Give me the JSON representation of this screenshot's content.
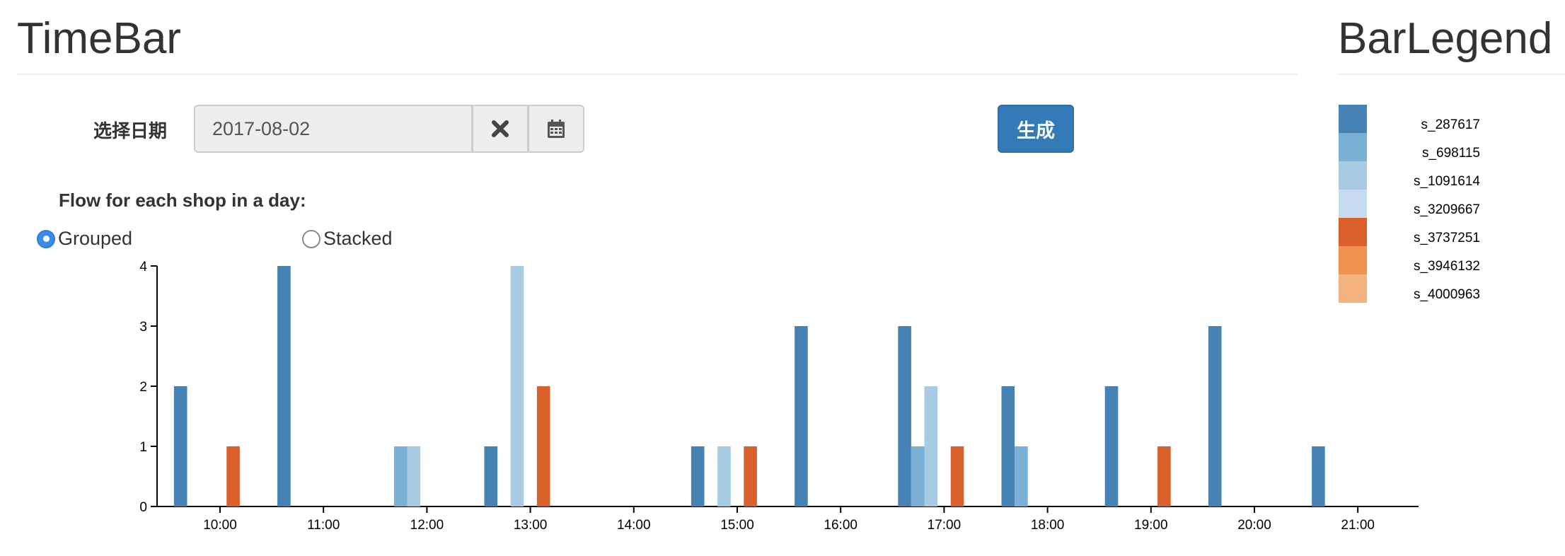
{
  "timebar": {
    "heading": "TimeBar",
    "date_label": "选择日期",
    "date_value": "2017-08-02",
    "clear_icon": "times-icon",
    "calendar_icon": "calendar-icon",
    "generate_label": "生成",
    "flow_title": "Flow for each shop in a day:",
    "radio_grouped": "Grouped",
    "radio_stacked": "Stacked",
    "selected_mode": "grouped"
  },
  "legend": {
    "heading": "BarLegend"
  },
  "chart_data": {
    "type": "bar",
    "mode": "grouped",
    "categories": [
      "10:00",
      "11:00",
      "12:00",
      "13:00",
      "14:00",
      "15:00",
      "16:00",
      "17:00",
      "18:00",
      "19:00",
      "20:00",
      "21:00"
    ],
    "ylim": [
      0,
      4
    ],
    "yticks": [
      0,
      1,
      2,
      3,
      4
    ],
    "series": [
      {
        "name": "s_287617",
        "color": "#4682b4",
        "values": [
          2,
          4,
          0,
          1,
          0,
          1,
          3,
          3,
          2,
          2,
          3,
          1
        ]
      },
      {
        "name": "s_698115",
        "color": "#7bafd6",
        "values": [
          0,
          0,
          1,
          0,
          0,
          0,
          0,
          1,
          1,
          0,
          0,
          0
        ]
      },
      {
        "name": "s_1091614",
        "color": "#a6cbe3",
        "values": [
          0,
          0,
          1,
          4,
          0,
          1,
          0,
          2,
          0,
          0,
          0,
          0
        ]
      },
      {
        "name": "s_3209667",
        "color": "#c6dbef",
        "values": [
          0,
          0,
          0,
          0,
          0,
          0,
          0,
          0,
          0,
          0,
          0,
          0
        ]
      },
      {
        "name": "s_3737251",
        "color": "#d95f2b",
        "values": [
          1,
          0,
          0,
          2,
          0,
          1,
          0,
          1,
          0,
          1,
          0,
          0
        ]
      },
      {
        "name": "s_3946132",
        "color": "#f0914f",
        "values": [
          0,
          0,
          0,
          0,
          0,
          0,
          0,
          0,
          0,
          0,
          0,
          0
        ]
      },
      {
        "name": "s_4000963",
        "color": "#f4b27f",
        "values": [
          0,
          0,
          0,
          0,
          0,
          0,
          0,
          0,
          0,
          0,
          0,
          0
        ]
      }
    ]
  }
}
